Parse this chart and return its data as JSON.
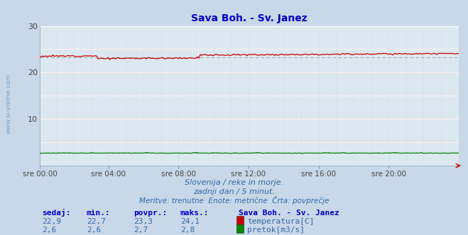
{
  "title": "Sava Boh. - Sv. Janez",
  "bg_color": "#c8d8e8",
  "plot_bg_color": "#dce8f0",
  "grid_color_white": "#ffffff",
  "grid_color_pink": "#f0c0c0",
  "grid_color_vpink": "#e8c8c8",
  "temp_color": "#cc0000",
  "flow_color": "#008800",
  "avg_line_color": "#aaaaaa",
  "ylim": [
    0,
    30
  ],
  "ytick_labels": [
    "10",
    "20",
    "30"
  ],
  "ytick_vals": [
    10,
    20,
    30
  ],
  "xlabel_ticks": [
    "sre 00:00",
    "sre 04:00",
    "sre 08:00",
    "sre 12:00",
    "sre 16:00",
    "sre 20:00"
  ],
  "n_points": 288,
  "temp_min": 22.7,
  "temp_max": 24.1,
  "temp_avg": 23.3,
  "temp_sedaj": 22.9,
  "flow_min": 2.6,
  "flow_max": 2.8,
  "flow_avg": 2.7,
  "flow_sedaj": 2.6,
  "subtitle1": "Slovenija / reke in morje.",
  "subtitle2": "zadnji dan / 5 minut.",
  "subtitle3": "Meritve: trenutne  Enote: metrične  Črta: povprečje",
  "legend_title": "Sava Boh. - Sv. Janez",
  "label_temp": "temperatura[C]",
  "label_flow": "pretok[m3/s]",
  "col_headers": [
    "sedaj:",
    "min.:",
    "povpr.:",
    "maks.:"
  ],
  "watermark": "www.si-vreme.com",
  "watermark_color": "#4477aa",
  "title_color": "#0000cc",
  "text_color": "#3366aa",
  "header_color": "#0000cc"
}
